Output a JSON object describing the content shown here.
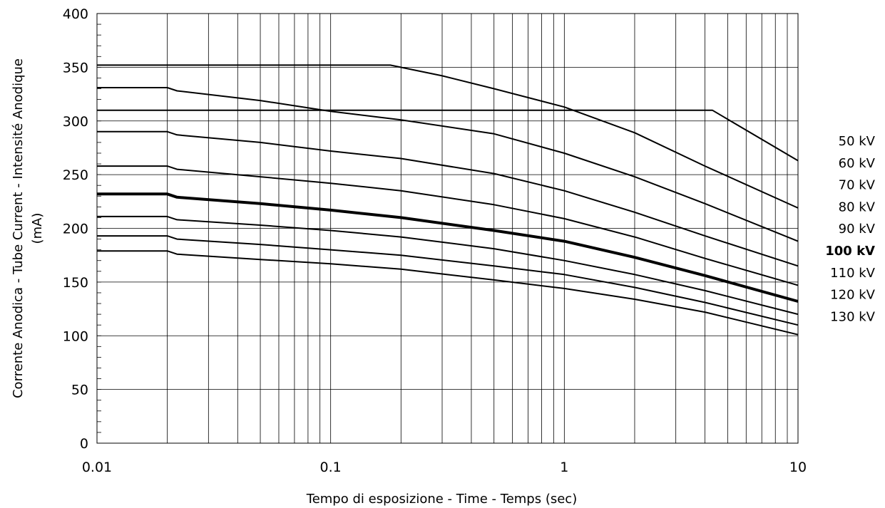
{
  "chart_data": {
    "type": "line",
    "xscale": "log",
    "xlim": [
      0.01,
      10
    ],
    "ylim": [
      0,
      400
    ],
    "grid": true,
    "xlabel": "Tempo di esposizione - Time - Temps  (sec)",
    "ylabel_line1": "Corrente Anodica - Tube Current - Intensité Anodique",
    "ylabel_line2": "(mA)",
    "x_ticks": [
      0.01,
      0.1,
      1,
      10
    ],
    "x_tick_labels": [
      "0.01",
      "0.1",
      "1",
      "10"
    ],
    "y_ticks": [
      0,
      50,
      100,
      150,
      200,
      250,
      300,
      350,
      400
    ],
    "y_tick_labels": [
      "0",
      "50",
      "100",
      "150",
      "200",
      "250",
      "300",
      "350",
      "400"
    ],
    "legend_placement": "right",
    "legend": [
      {
        "label": "50 kV",
        "bold": false
      },
      {
        "label": "60 kV",
        "bold": false
      },
      {
        "label": "70 kV",
        "bold": false
      },
      {
        "label": "80 kV",
        "bold": false
      },
      {
        "label": "90 kV",
        "bold": false
      },
      {
        "label": "100 kV",
        "bold": true
      },
      {
        "label": "110 kV",
        "bold": false
      },
      {
        "label": "120 kV",
        "bold": false
      },
      {
        "label": "130 kV",
        "bold": false
      }
    ],
    "series": [
      {
        "bold": false,
        "points": [
          [
            0.01,
            310
          ],
          [
            4.3,
            310
          ],
          [
            10,
            263
          ]
        ]
      },
      {
        "bold": false,
        "points": [
          [
            0.01,
            352
          ],
          [
            0.18,
            352
          ],
          [
            0.3,
            342
          ],
          [
            0.5,
            330
          ],
          [
            1,
            313
          ],
          [
            2,
            289
          ],
          [
            4,
            258
          ],
          [
            10,
            219
          ]
        ]
      },
      {
        "bold": false,
        "points": [
          [
            0.01,
            331
          ],
          [
            0.02,
            331
          ],
          [
            0.022,
            328
          ],
          [
            0.05,
            319
          ],
          [
            0.1,
            309
          ],
          [
            0.2,
            301
          ],
          [
            0.5,
            288
          ],
          [
            1,
            270
          ],
          [
            2,
            248
          ],
          [
            4,
            223
          ],
          [
            10,
            188
          ]
        ]
      },
      {
        "bold": false,
        "points": [
          [
            0.01,
            290
          ],
          [
            0.02,
            290
          ],
          [
            0.022,
            287
          ],
          [
            0.05,
            280
          ],
          [
            0.1,
            272
          ],
          [
            0.2,
            265
          ],
          [
            0.5,
            251
          ],
          [
            1,
            235
          ],
          [
            2,
            215
          ],
          [
            4,
            193
          ],
          [
            10,
            165
          ]
        ]
      },
      {
        "bold": false,
        "points": [
          [
            0.01,
            258
          ],
          [
            0.02,
            258
          ],
          [
            0.022,
            255
          ],
          [
            0.05,
            248
          ],
          [
            0.1,
            242
          ],
          [
            0.2,
            235
          ],
          [
            0.5,
            222
          ],
          [
            1,
            209
          ],
          [
            2,
            192
          ],
          [
            4,
            172
          ],
          [
            10,
            147
          ]
        ]
      },
      {
        "bold": true,
        "points": [
          [
            0.01,
            232
          ],
          [
            0.02,
            232
          ],
          [
            0.022,
            229
          ],
          [
            0.05,
            223
          ],
          [
            0.1,
            217
          ],
          [
            0.2,
            210
          ],
          [
            0.5,
            198
          ],
          [
            1,
            188
          ],
          [
            2,
            173
          ],
          [
            4,
            156
          ],
          [
            10,
            132
          ]
        ]
      },
      {
        "bold": false,
        "points": [
          [
            0.01,
            211
          ],
          [
            0.02,
            211
          ],
          [
            0.022,
            208
          ],
          [
            0.05,
            203
          ],
          [
            0.1,
            198
          ],
          [
            0.2,
            192
          ],
          [
            0.5,
            181
          ],
          [
            1,
            170
          ],
          [
            2,
            157
          ],
          [
            4,
            142
          ],
          [
            10,
            120
          ]
        ]
      },
      {
        "bold": false,
        "points": [
          [
            0.01,
            193
          ],
          [
            0.02,
            193
          ],
          [
            0.022,
            190
          ],
          [
            0.05,
            185
          ],
          [
            0.1,
            180
          ],
          [
            0.2,
            175
          ],
          [
            0.5,
            165
          ],
          [
            1,
            157
          ],
          [
            2,
            145
          ],
          [
            4,
            131
          ],
          [
            10,
            110
          ]
        ]
      },
      {
        "bold": false,
        "points": [
          [
            0.01,
            179
          ],
          [
            0.02,
            179
          ],
          [
            0.022,
            176
          ],
          [
            0.05,
            171
          ],
          [
            0.1,
            167
          ],
          [
            0.2,
            162
          ],
          [
            0.5,
            152
          ],
          [
            1,
            144
          ],
          [
            2,
            134
          ],
          [
            4,
            122
          ],
          [
            10,
            101
          ]
        ]
      }
    ]
  }
}
